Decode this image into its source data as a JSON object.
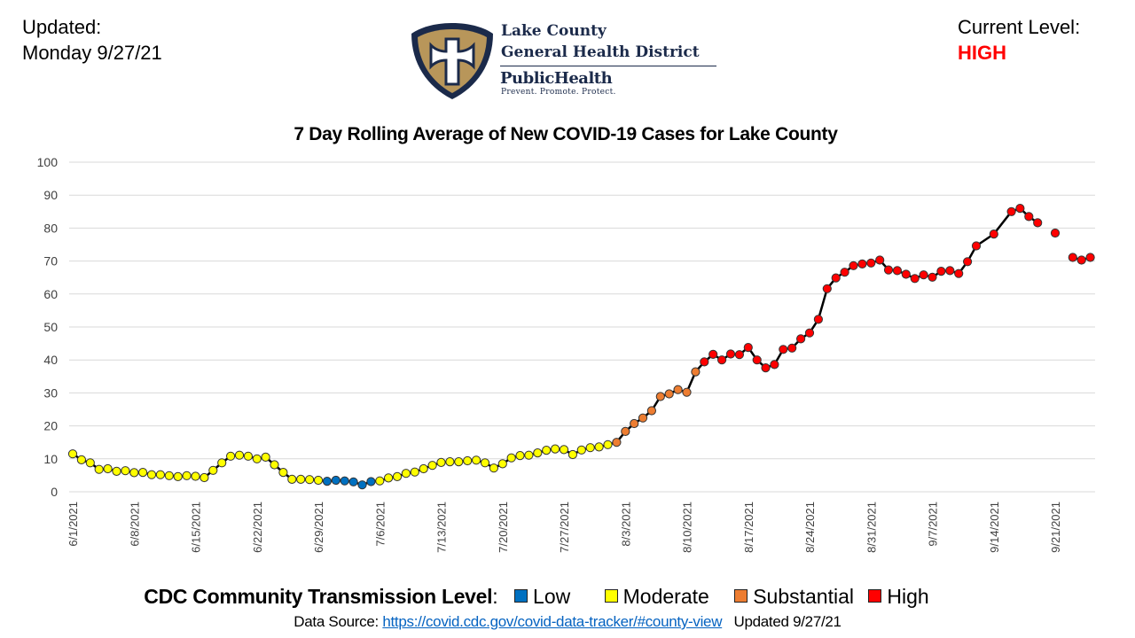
{
  "header": {
    "updated_label": "Updated:",
    "updated_date": "Monday 9/27/21",
    "level_label": "Current Level:",
    "level_value": "HIGH",
    "level_color": "#ff0000"
  },
  "logo": {
    "icon": "shield-cross-icon",
    "line1": "Lake County",
    "line2": "General Health District",
    "line3": "PublicHealth",
    "tagline": "Prevent. Promote. Protect.",
    "colors": {
      "navy": "#1b2a4a",
      "gold": "#b8965a"
    }
  },
  "legend": {
    "label": "CDC Community Transmission Level",
    "colon": ":",
    "items": [
      {
        "label": "Low",
        "color": "#0070c0"
      },
      {
        "label": "Moderate",
        "color": "#ffff00"
      },
      {
        "label": "Substantial",
        "color": "#ed7d31"
      },
      {
        "label": "High",
        "color": "#ff0000"
      }
    ]
  },
  "source": {
    "prefix": "Data Source:",
    "link_text": "https://covid.cdc.gov/covid-data-tracker/#county-view",
    "updated": "Updated 9/27/21"
  },
  "chart_data": {
    "type": "line",
    "title": "7 Day Rolling Average of New COVID-19 Cases for Lake County",
    "xlabel": "",
    "ylabel": "",
    "ylim": [
      0,
      100
    ],
    "yticks": [
      0,
      10,
      20,
      30,
      40,
      50,
      60,
      70,
      80,
      90,
      100
    ],
    "grid": true,
    "start_date": "6/1/2021",
    "xtick_labels": [
      "6/1/2021",
      "6/8/2021",
      "6/15/2021",
      "6/22/2021",
      "6/29/2021",
      "7/6/2021",
      "7/13/2021",
      "7/20/2021",
      "7/27/2021",
      "8/3/2021",
      "8/10/2021",
      "8/17/2021",
      "8/24/2021",
      "8/31/2021",
      "9/7/2021",
      "9/14/2021",
      "9/21/2021"
    ],
    "xtick_step_days": 7,
    "x_days_total": 117,
    "line_color": "#000000",
    "level_colors": {
      "L": "#0070c0",
      "M": "#ffff00",
      "S": "#ed7d31",
      "H": "#ff0000"
    },
    "series": [
      {
        "name": "7 Day Rolling Average",
        "values": [
          11.5,
          9.7,
          8.8,
          6.8,
          7.0,
          6.2,
          6.4,
          5.8,
          5.9,
          5.2,
          5.2,
          4.9,
          4.6,
          4.9,
          4.7,
          4.3,
          6.5,
          8.8,
          10.8,
          11.1,
          10.8,
          10.0,
          10.5,
          8.2,
          5.9,
          3.8,
          3.8,
          3.7,
          3.5,
          3.2,
          3.5,
          3.3,
          3.0,
          2.1,
          3.1,
          3.3,
          4.2,
          4.6,
          5.6,
          6.0,
          7.0,
          8.0,
          8.9,
          9.1,
          9.1,
          9.4,
          9.6,
          8.8,
          7.2,
          8.5,
          10.3,
          11.0,
          11.1,
          11.8,
          12.6,
          13.0,
          12.8,
          11.3,
          12.7,
          13.4,
          13.6,
          14.3,
          15.0,
          18.3,
          20.7,
          22.4,
          24.6,
          28.9,
          29.7,
          31.0,
          30.2,
          36.4,
          39.4,
          41.7,
          40.0,
          41.8,
          41.6,
          43.8,
          40.0,
          37.6,
          38.6,
          43.2,
          43.6,
          46.4,
          48.2,
          52.3,
          61.6,
          64.9,
          66.6,
          68.6,
          69.1,
          69.4,
          70.3,
          67.3,
          67.1,
          66.0,
          64.7,
          65.8,
          65.1,
          66.9,
          67.1,
          66.2,
          69.8,
          74.6,
          null,
          78.2,
          null,
          85.0,
          86.0,
          83.5,
          81.6,
          null,
          78.5,
          null,
          71.1,
          70.3,
          71.1
        ],
        "levels": "MMMMMMMMMMMMMMMMMMMMMMMMMMMMMLLLLLLMMMMMMMMMMMMMMMMMMMMMMMMMMMSSSSSSSSSSHHHHHHHHHHHHHHHHHHHHHHHHHHHHHHHHHHHHHHHHHHHHHHHHHHHHHHH",
        "line_breaks_after_day": [
          110,
          112
        ]
      }
    ]
  }
}
